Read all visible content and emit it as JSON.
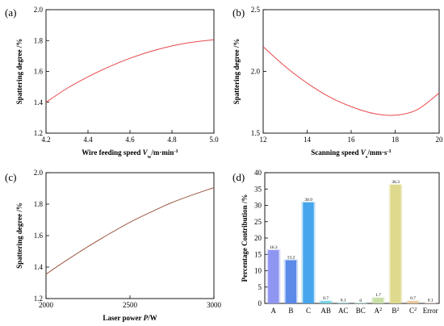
{
  "panels": [
    {
      "tag": "(a)",
      "chart_data": {
        "type": "line",
        "xlabel_parts": [
          {
            "t": "Wire feeding speed "
          },
          {
            "t": "V",
            "italic": true
          },
          {
            "t": "w",
            "sub": true
          },
          {
            "t": "/m·min"
          },
          {
            "t": "-1",
            "sup": true
          }
        ],
        "ylabel": "Spattering degree /%",
        "xlim": [
          4.2,
          5.0
        ],
        "ylim": [
          1.2,
          2.0
        ],
        "xticks": [
          "4.2",
          "4.4",
          "4.6",
          "4.8",
          "5.0"
        ],
        "yticks": [
          "1.2",
          "1.4",
          "1.6",
          "1.8",
          "2.0"
        ],
        "color": "#e8484b",
        "series": [
          {
            "x": [
              4.2,
              4.3,
              4.4,
              4.5,
              4.6,
              4.7,
              4.8,
              4.9,
              5.0
            ],
            "y": [
              1.4,
              1.49,
              1.565,
              1.63,
              1.685,
              1.73,
              1.765,
              1.79,
              1.805
            ]
          }
        ]
      }
    },
    {
      "tag": "(b)",
      "chart_data": {
        "type": "line",
        "xlabel_parts": [
          {
            "t": "Scanning speed "
          },
          {
            "t": "V",
            "italic": true
          },
          {
            "t": "s",
            "sub": true
          },
          {
            "t": "/mm·s"
          },
          {
            "t": "-1",
            "sup": true
          }
        ],
        "ylabel": "Spattering degree /%",
        "xlim": [
          12,
          20
        ],
        "ylim": [
          1.5,
          2.5
        ],
        "xticks": [
          "12",
          "14",
          "16",
          "18",
          "20"
        ],
        "yticks": [
          "1.5",
          "2.0",
          "2.5"
        ],
        "color": "#e8484b",
        "series": [
          {
            "x": [
              12,
              13,
              14,
              15,
              16,
              17,
              18,
              19,
              20
            ],
            "y": [
              2.2,
              2.04,
              1.905,
              1.795,
              1.715,
              1.66,
              1.645,
              1.69,
              1.825
            ]
          }
        ]
      }
    },
    {
      "tag": "(c)",
      "chart_data": {
        "type": "line",
        "xlabel_parts": [
          {
            "t": "Laser power "
          },
          {
            "t": "P",
            "italic": true
          },
          {
            "t": "/W"
          }
        ],
        "ylabel": "Spattering degree /%",
        "xlim": [
          2000,
          3000
        ],
        "ylim": [
          1.2,
          2.0
        ],
        "xticks": [
          "2000",
          "2500",
          "3000"
        ],
        "yticks": [
          "1.2",
          "1.4",
          "1.6",
          "1.8",
          "2.0"
        ],
        "color": "#9c5a44",
        "series": [
          {
            "x": [
              2000,
              2125,
              2250,
              2375,
              2500,
              2625,
              2750,
              2875,
              3000
            ],
            "y": [
              1.355,
              1.445,
              1.53,
              1.61,
              1.685,
              1.75,
              1.81,
              1.86,
              1.905
            ]
          }
        ]
      }
    },
    {
      "tag": "(d)",
      "chart_data": {
        "type": "bar",
        "ylabel": "Percentage Contribution /%",
        "ylim": [
          0,
          40
        ],
        "yticks": [
          "0",
          "5",
          "10",
          "15",
          "20",
          "25",
          "30",
          "35",
          "40"
        ],
        "categories": [
          [
            {
              "t": "A"
            }
          ],
          [
            {
              "t": "B"
            }
          ],
          [
            {
              "t": "C"
            }
          ],
          [
            {
              "t": "AB"
            }
          ],
          [
            {
              "t": "AC"
            }
          ],
          [
            {
              "t": "BC"
            }
          ],
          [
            {
              "t": "A"
            },
            {
              "t": "2",
              "sup": true
            }
          ],
          [
            {
              "t": "B"
            },
            {
              "t": "2",
              "sup": true
            }
          ],
          [
            {
              "t": "C"
            },
            {
              "t": "2",
              "sup": true
            }
          ],
          [
            {
              "t": "Error"
            }
          ]
        ],
        "values": [
          16.3,
          13.2,
          30.9,
          0.7,
          0.1,
          0,
          1.7,
          36.3,
          0.7,
          0.1
        ],
        "labels": [
          "16.3",
          "13.2",
          "30.9",
          "0.7",
          "0.1",
          "0",
          "1.7",
          "36.3",
          "0.7",
          "0.1"
        ],
        "colors": [
          "#8f96f2",
          "#5b8ae8",
          "#46a5ec",
          "#76d3e3",
          "#8ad8e0",
          "#9ad8cf",
          "#c8dfa8",
          "#dfd98e",
          "#e8c89a",
          "#e9c8c0"
        ]
      }
    }
  ]
}
